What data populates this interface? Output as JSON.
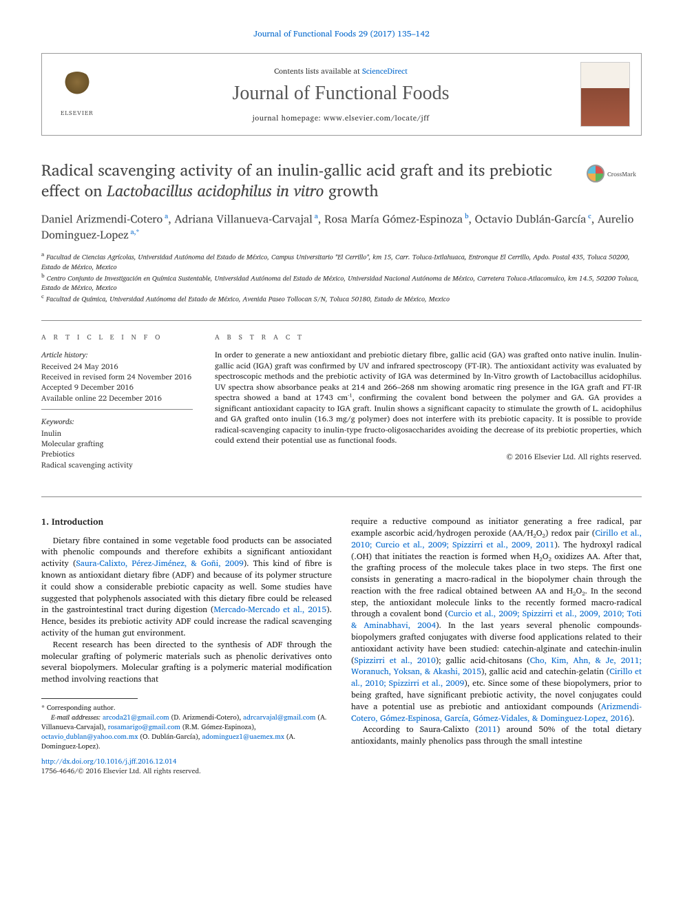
{
  "journal_ref": "Journal of Functional Foods 29 (2017) 135–142",
  "header": {
    "contents_prefix": "Contents lists available at ",
    "contents_link": "ScienceDirect",
    "journal_name": "Journal of Functional Foods",
    "homepage_prefix": "journal homepage: ",
    "homepage_url": "www.elsevier.com/locate/jff",
    "elsevier_label": "ELSEVIER"
  },
  "crossmark": "CrossMark",
  "title_part1": "Radical scavenging activity of an inulin-gallic acid graft and its prebiotic effect on ",
  "title_italic": "Lactobacillus acidophilus in vitro",
  "title_part2": " growth",
  "authors_html": "Daniel Arizmendi-Cotero<sup> a</sup>, Adriana Villanueva-Carvajal<sup> a</sup>, Rosa María Gómez-Espinoza<sup> b</sup>, Octavio Dublán-García<sup> c</sup>, Aurelio Dominguez-Lopez<sup> a,*</sup>",
  "affiliations": [
    "a Facultad de Ciencias Agrícolas, Universidad Autónoma del Estado de México, Campus Universitario \"El Cerrillo\", km 15, Carr. Toluca-Ixtlahuaca, Entronque El Cerrillo, Apdo. Postal 435, Toluca 50200, Estado de México, Mexico",
    "b Centro Conjunto de Investigación en Química Sustentable, Universidad Autónoma del Estado de México, Universidad Nacional Autónoma de México, Carretera Toluca-Atlacomulco, km 14.5, 50200 Toluca, Estado de México, Mexico",
    "c Facultad de Química, Universidad Autónoma del Estado de México, Avenida Paseo Tollocan S/N, Toluca 50180, Estado de México, Mexico"
  ],
  "info": {
    "heading": "A R T I C L E   I N F O",
    "history_label": "Article history:",
    "history": [
      "Received 24 May 2016",
      "Received in revised form 24 November 2016",
      "Accepted 9 December 2016",
      "Available online 22 December 2016"
    ],
    "keywords_label": "Keywords:",
    "keywords": [
      "Inulin",
      "Molecular grafting",
      "Prebiotics",
      "Radical scavenging activity"
    ]
  },
  "abstract": {
    "heading": "A B S T R A C T",
    "text": "In order to generate a new antioxidant and prebiotic dietary fibre, gallic acid (GA) was grafted onto native inulin. Inulin-gallic acid (IGA) graft was confirmed by UV and infrared spectroscopy (FT-IR). The antioxidant activity was evaluated by spectroscopic methods and the prebiotic activity of IGA was determined by In-Vitro growth of Lactobacillus acidophilus. UV spectra show absorbance peaks at 214 and 266–268 nm showing aromatic ring presence in the IGA graft and FT-IR spectra showed a band at 1743 cm⁻¹, confirming the covalent bond between the polymer and GA. GA provides a significant antioxidant capacity to IGA graft. Inulin shows a significant capacity to stimulate the growth of L. acidophilus and GA grafted onto inulin (16.3 mg/g polymer) does not interfere with its prebiotic capacity. It is possible to provide radical-scavenging capacity to inulin-type fructo-oligosaccharides avoiding the decrease of its prebiotic properties, which could extend their potential use as functional foods.",
    "copyright": "© 2016 Elsevier Ltd. All rights reserved."
  },
  "body": {
    "section_number": "1.",
    "section_title": "Introduction",
    "col1_p1": "Dietary fibre contained in some vegetable food products can be associated with phenolic compounds and therefore exhibits a significant antioxidant activity (Saura-Calixto, Pérez-Jiménez, & Goñi, 2009). This kind of fibre is known as antioxidant dietary fibre (ADF) and because of its polymer structure it could show a considerable prebiotic capacity as well. Some studies have suggested that polyphenols associated with this dietary fibre could be released in the gastrointestinal tract during digestion (Mercado-Mercado et al., 2015). Hence, besides its prebiotic activity ADF could increase the radical scavenging activity of the human gut environment.",
    "col1_p2": "Recent research has been directed to the synthesis of ADF through the molecular grafting of polymeric materials such as phenolic derivatives onto several biopolymers. Molecular grafting is a polymeric material modification method involving reactions that",
    "col2_p1": "require a reductive compound as initiator generating a free radical, par example ascorbic acid/hydrogen peroxide (AA/H₂O₂) redox pair (Cirillo et al., 2010; Curcio et al., 2009; Spizzirri et al., 2009, 2011). The hydroxyl radical (.OH) that initiates the reaction is formed when H₂O₂ oxidizes AA. After that, the grafting process of the molecule takes place in two steps. The first one consists in generating a macro-radical in the biopolymer chain through the reaction with the free radical obtained between AA and H₂O₂. In the second step, the antioxidant molecule links to the recently formed macro-radical through a covalent bond (Curcio et al., 2009; Spizzirri et al., 2009, 2010; Toti & Aminabhavi, 2004). In the last years several phenolic compounds-biopolymers grafted conjugates with diverse food applications related to their antioxidant activity have been studied: catechin-alginate and catechin-inulin (Spizzirri et al., 2010); gallic acid-chitosans (Cho, Kim, Ahn, & Je, 2011; Woranuch, Yoksan, & Akashi, 2015), gallic acid and catechin-gelatin (Cirillo et al., 2010; Spizzirri et al., 2009), etc. Since some of these biopolymers, prior to being grafted, have significant prebiotic activity, the novel conjugates could have a potential use as prebiotic and antioxidant compounds (Arizmendi-Cotero, Gómez-Espinosa, García, Gómez-Vidales, & Dominguez-Lopez, 2016).",
    "col2_p2": "According to Saura-Calixto (2011) around 50% of the total dietary antioxidants, mainly phenolics pass through the small intestine"
  },
  "footnotes": {
    "corresponding": "* Corresponding author.",
    "email_label": "E-mail addresses:",
    "emails": "arcoda21@gmail.com (D. Arizmendi-Cotero), adrcarvajal@gmail.com (A. Villanueva-Carvajal), rosamarigo@gmail.com (R.M. Gómez-Espinoza), octavio_dublan@yahoo.com.mx (O. Dublán-García), adominguez1@uaemex.mx (A. Dominguez-Lopez).",
    "doi": "http://dx.doi.org/10.1016/j.jff.2016.12.014",
    "issn": "1756-4646/© 2016 Elsevier Ltd. All rights reserved."
  },
  "colors": {
    "link": "#0066cc",
    "text": "#1a1a1a",
    "heading_gray": "#555555",
    "border": "#888888"
  }
}
